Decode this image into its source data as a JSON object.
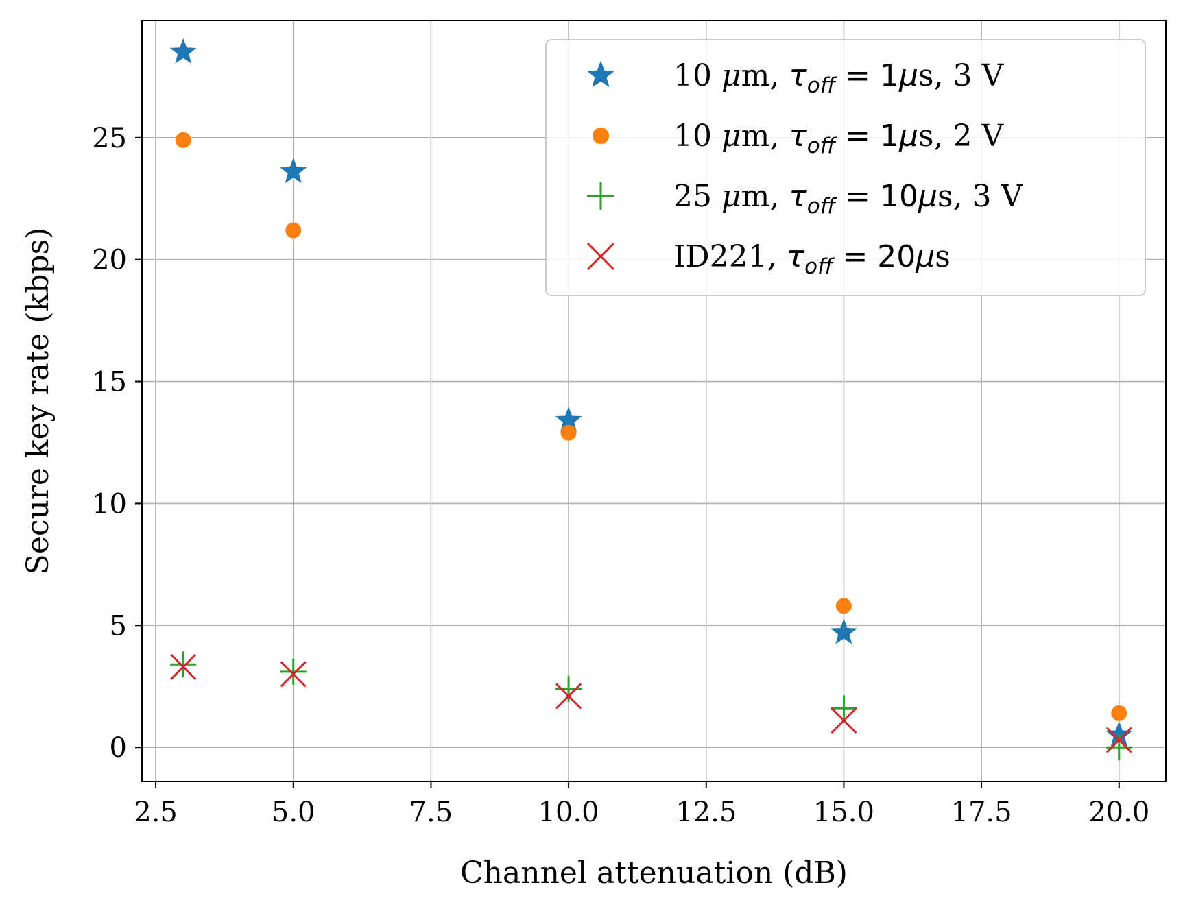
{
  "chart_data": {
    "type": "scatter",
    "title": "",
    "xlabel": "Channel attenuation (dB)",
    "ylabel": "Secure key rate (kbps)",
    "xlim": [
      2.25,
      20.85
    ],
    "ylim": [
      -1.4,
      29.8
    ],
    "xticks": [
      2.5,
      5.0,
      7.5,
      10.0,
      12.5,
      15.0,
      17.5,
      20.0
    ],
    "xtick_labels": [
      "2.5",
      "5.0",
      "7.5",
      "10.0",
      "12.5",
      "15.0",
      "17.5",
      "20.0"
    ],
    "yticks": [
      0,
      5,
      10,
      15,
      20,
      25
    ],
    "ytick_labels": [
      "0",
      "5",
      "10",
      "15",
      "20",
      "25"
    ],
    "grid": true,
    "legend_position": "top-right",
    "series": [
      {
        "name": "10 μm, τoff = 1μs, 3 V",
        "legend": {
          "pre": "10 ",
          "mu": "μ",
          "unit": "m, ",
          "tau": "τ",
          "sub": "off",
          "eq": " = 1",
          "mu2": "μ",
          "post": "s, 3 V"
        },
        "marker": "star",
        "color": "#1f77b4",
        "x": [
          3,
          5,
          10,
          15,
          20
        ],
        "y": [
          28.5,
          23.6,
          13.4,
          4.7,
          0.5
        ]
      },
      {
        "name": "10 μm, τoff = 1μs, 2 V",
        "legend": {
          "pre": "10 ",
          "mu": "μ",
          "unit": "m, ",
          "tau": "τ",
          "sub": "off",
          "eq": " = 1",
          "mu2": "μ",
          "post": "s, 2 V"
        },
        "marker": "circle",
        "color": "#ff7f0e",
        "x": [
          3,
          5,
          10,
          15,
          20
        ],
        "y": [
          24.9,
          21.2,
          12.9,
          5.8,
          1.4
        ]
      },
      {
        "name": "25 μm, τoff = 10μs, 3 V",
        "legend": {
          "pre": "25 ",
          "mu": "μ",
          "unit": "m, ",
          "tau": "τ",
          "sub": "off",
          "eq": " = 10",
          "mu2": "μ",
          "post": "s, 3 V"
        },
        "marker": "plus",
        "color": "#2ca02c",
        "x": [
          3,
          5,
          10,
          15,
          20
        ],
        "y": [
          3.4,
          3.1,
          2.4,
          1.6,
          0.0
        ]
      },
      {
        "name": "ID221, τoff = 20μs",
        "legend": {
          "pre": "ID221, ",
          "mu": "",
          "unit": "",
          "tau": "τ",
          "sub": "off",
          "eq": " = 20",
          "mu2": "μ",
          "post": "s"
        },
        "marker": "x",
        "color": "#d62728",
        "x": [
          3,
          5,
          10,
          15,
          20
        ],
        "y": [
          3.3,
          3.0,
          2.1,
          1.1,
          0.3
        ]
      }
    ]
  }
}
